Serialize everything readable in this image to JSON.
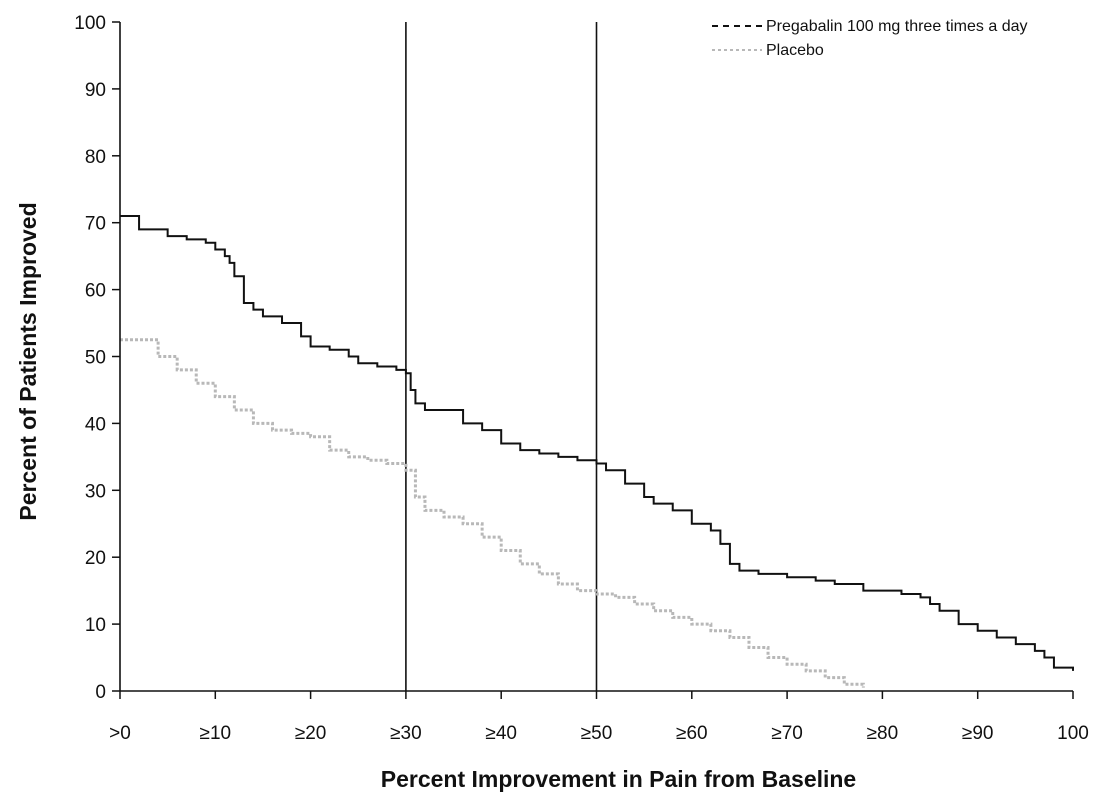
{
  "chart_data": {
    "type": "line",
    "title": "",
    "xlabel": "Percent Improvement in Pain from Baseline",
    "ylabel": "Percent of Patients Improved",
    "xlim": [
      0,
      100
    ],
    "ylim": [
      0,
      100
    ],
    "x_ticks": [
      0,
      10,
      20,
      30,
      40,
      50,
      60,
      70,
      80,
      90,
      100
    ],
    "x_tick_labels": [
      ">0",
      "≥10",
      "≥20",
      "≥30",
      "≥40",
      "≥50",
      "≥60",
      "≥70",
      "≥80",
      "≥90",
      "100"
    ],
    "y_ticks": [
      0,
      10,
      20,
      30,
      40,
      50,
      60,
      70,
      80,
      90,
      100
    ],
    "y_tick_labels": [
      "0",
      "10",
      "20",
      "30",
      "40",
      "50",
      "60",
      "70",
      "80",
      "90",
      "100"
    ],
    "reference_lines_x": [
      30,
      50
    ],
    "grid": false,
    "legend_position": "top-right",
    "series": [
      {
        "name": "Pregabalin 100 mg three times a day",
        "color": "#111111",
        "style": "dashed",
        "x": [
          0,
          1.5,
          2,
          3,
          5,
          7,
          9,
          10,
          11,
          11.5,
          12,
          13,
          14,
          15,
          17,
          18,
          19,
          20,
          22,
          24,
          25,
          27,
          29,
          30,
          30.5,
          31,
          32,
          34,
          36,
          38,
          40,
          42,
          44,
          46,
          48,
          50,
          51,
          53,
          55,
          56,
          58,
          60,
          62,
          63,
          64,
          65,
          67,
          70,
          73,
          75,
          78,
          80,
          82,
          84,
          85,
          86,
          88,
          90,
          92,
          94,
          96,
          97,
          98,
          100
        ],
        "y": [
          71,
          71,
          69,
          69,
          68,
          67.5,
          67,
          66,
          65,
          64,
          62,
          58,
          57,
          56,
          55,
          55,
          53,
          51.5,
          51,
          50,
          49,
          48.5,
          48,
          47.5,
          45,
          43,
          42,
          42,
          40,
          39,
          37,
          36,
          35.5,
          35,
          34.5,
          34,
          33,
          31,
          29,
          28,
          27,
          25,
          24,
          22,
          19,
          18,
          17.5,
          17,
          16.5,
          16,
          15,
          15,
          14.5,
          14,
          13,
          12,
          10,
          9,
          8,
          7,
          6,
          5,
          3.5,
          3
        ]
      },
      {
        "name": "Placebo",
        "color": "#b8b8b8",
        "style": "dotted",
        "x": [
          0,
          2,
          4,
          6,
          8,
          10,
          12,
          14,
          16,
          18,
          20,
          22,
          24,
          26,
          28,
          30,
          31,
          32,
          34,
          36,
          38,
          40,
          42,
          44,
          46,
          48,
          50,
          52,
          54,
          56,
          58,
          60,
          62,
          64,
          66,
          68,
          70,
          72,
          74,
          76,
          78
        ],
        "y": [
          52.5,
          52.5,
          50,
          48,
          46,
          44,
          42,
          40,
          39,
          38.5,
          38,
          36,
          35,
          34.5,
          34,
          33,
          29,
          27,
          26,
          25,
          23,
          21,
          19,
          17.5,
          16,
          15,
          14.5,
          14,
          13,
          12,
          11,
          10,
          9,
          8,
          6.5,
          5,
          4,
          3,
          2,
          1,
          0.5
        ]
      }
    ]
  }
}
